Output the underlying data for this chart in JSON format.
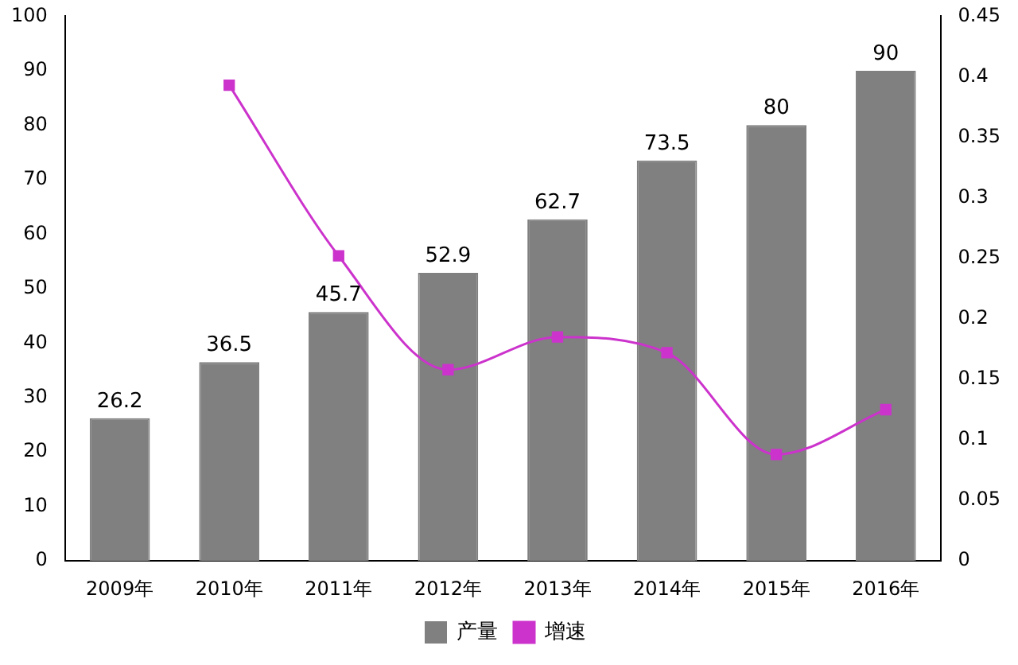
{
  "chart_data": {
    "type": "bar",
    "categories": [
      "2009年",
      "2010年",
      "2011年",
      "2012年",
      "2013年",
      "2014年",
      "2015年",
      "2016年"
    ],
    "series": [
      {
        "name": "产量",
        "color": "#808080",
        "values": [
          26.2,
          36.5,
          45.7,
          52.9,
          62.7,
          73.5,
          80,
          90
        ],
        "value_labels": [
          "26.2",
          "36.5",
          "45.7",
          "52.9",
          "62.7",
          "73.5",
          "80",
          "90"
        ]
      },
      {
        "name": "增速",
        "type": "line",
        "axis": "y2",
        "color": "#cc33cc",
        "values": [
          null,
          0.393,
          0.252,
          0.158,
          0.185,
          0.172,
          0.088,
          0.125
        ]
      }
    ],
    "ylim": [
      0,
      100
    ],
    "yticks": [
      0,
      10,
      20,
      30,
      40,
      50,
      60,
      70,
      80,
      90,
      100
    ],
    "y2lim": [
      0,
      0.45
    ],
    "y2ticks": [
      0,
      0.05,
      0.1,
      0.15,
      0.2,
      0.25,
      0.3,
      0.35,
      0.4,
      0.45
    ],
    "marker": "square",
    "legend": "bottom",
    "grid": false
  }
}
